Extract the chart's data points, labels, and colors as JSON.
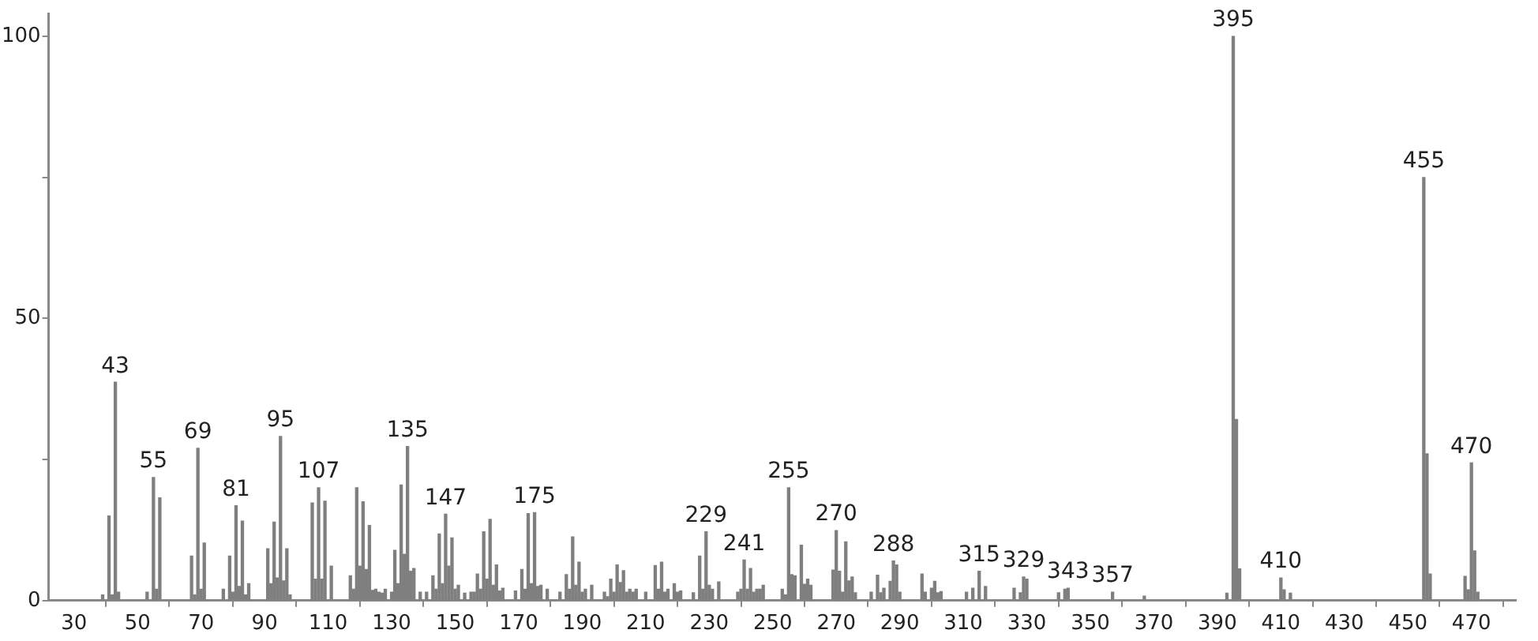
{
  "chart_data": {
    "type": "bar",
    "color": "#7f7f7f",
    "grid": false,
    "legend": false,
    "xlim": [
      22,
      484
    ],
    "xticks": [
      30,
      50,
      70,
      90,
      110,
      130,
      150,
      170,
      190,
      210,
      230,
      250,
      270,
      290,
      310,
      330,
      350,
      370,
      390,
      410,
      430,
      450,
      470
    ],
    "ylim": [
      0,
      104
    ],
    "yticks": [
      0,
      {
        "value": 25,
        "label": null
      },
      50,
      {
        "value": 75,
        "label": null
      },
      100
    ],
    "x": [
      39,
      41,
      42,
      43,
      44,
      53,
      55,
      56,
      57,
      67,
      68,
      69,
      70,
      71,
      77,
      79,
      80,
      81,
      82,
      83,
      84,
      85,
      91,
      92,
      93,
      94,
      95,
      96,
      97,
      98,
      105,
      106,
      107,
      108,
      109,
      111,
      117,
      118,
      119,
      120,
      121,
      122,
      123,
      124,
      125,
      126,
      127,
      128,
      130,
      131,
      132,
      133,
      134,
      135,
      136,
      137,
      139,
      141,
      143,
      144,
      145,
      146,
      147,
      148,
      149,
      150,
      151,
      153,
      155,
      156,
      157,
      158,
      159,
      160,
      161,
      162,
      163,
      164,
      165,
      169,
      171,
      172,
      173,
      174,
      175,
      176,
      177,
      179,
      183,
      185,
      186,
      187,
      188,
      189,
      190,
      191,
      193,
      197,
      198,
      199,
      200,
      201,
      202,
      203,
      204,
      205,
      206,
      207,
      210,
      213,
      214,
      215,
      216,
      217,
      219,
      220,
      221,
      225,
      227,
      228,
      229,
      230,
      231,
      233,
      239,
      240,
      241,
      242,
      243,
      244,
      245,
      246,
      247,
      253,
      254,
      255,
      256,
      257,
      259,
      260,
      261,
      262,
      269,
      270,
      271,
      272,
      273,
      274,
      275,
      276,
      281,
      283,
      284,
      285,
      287,
      288,
      289,
      290,
      297,
      298,
      300,
      301,
      302,
      303,
      311,
      313,
      315,
      317,
      326,
      328,
      329,
      330,
      340,
      342,
      343,
      357,
      367,
      393,
      395,
      396,
      397,
      410,
      411,
      413,
      455,
      456,
      457,
      468,
      469,
      470,
      471,
      472
    ],
    "values": [
      1.0,
      15.0,
      1.0,
      38.7,
      1.5,
      1.5,
      21.8,
      2.0,
      18.2,
      7.9,
      1.0,
      27.0,
      2.0,
      10.2,
      2.0,
      7.9,
      1.5,
      16.8,
      2.5,
      14.1,
      1.0,
      3.0,
      9.2,
      3.0,
      13.9,
      4.0,
      29.1,
      3.5,
      9.2,
      1.0,
      17.3,
      3.8,
      20.0,
      3.8,
      17.6,
      6.1,
      4.4,
      2.0,
      20.0,
      6.1,
      17.5,
      5.5,
      13.3,
      1.8,
      2.0,
      1.5,
      1.3,
      2.0,
      1.5,
      8.9,
      3.0,
      20.5,
      8.2,
      27.3,
      5.2,
      5.7,
      1.5,
      1.5,
      4.4,
      2.0,
      11.8,
      3.0,
      15.3,
      6.1,
      11.1,
      2.0,
      2.7,
      1.3,
      1.5,
      1.5,
      4.7,
      2.0,
      12.2,
      3.8,
      14.4,
      2.7,
      6.3,
      1.7,
      2.2,
      1.7,
      5.5,
      2.0,
      15.4,
      3.0,
      15.6,
      2.5,
      2.7,
      2.0,
      1.5,
      4.6,
      2.0,
      11.3,
      2.7,
      6.8,
      1.5,
      2.0,
      2.7,
      1.5,
      0.7,
      3.8,
      1.5,
      6.3,
      3.2,
      5.3,
      1.5,
      2.0,
      1.5,
      2.0,
      1.5,
      6.2,
      2.0,
      6.8,
      1.5,
      2.0,
      3.0,
      1.5,
      1.7,
      1.4,
      7.9,
      2.0,
      12.2,
      2.7,
      2.0,
      3.3,
      1.5,
      2.0,
      7.2,
      2.0,
      5.7,
      1.5,
      2.0,
      2.0,
      2.7,
      2.0,
      1.0,
      20.0,
      4.6,
      4.4,
      9.8,
      2.9,
      3.8,
      2.7,
      5.4,
      12.4,
      5.2,
      1.5,
      10.4,
      3.5,
      4.2,
      1.4,
      1.5,
      4.5,
      1.4,
      2.2,
      3.4,
      7.0,
      6.3,
      1.5,
      4.7,
      1.5,
      2.2,
      3.4,
      1.4,
      1.6,
      1.5,
      2.2,
      5.2,
      2.5,
      2.2,
      1.4,
      4.2,
      3.8,
      1.4,
      2.0,
      2.2,
      1.5,
      0.8,
      1.3,
      100,
      32.1,
      5.6,
      4.0,
      1.9,
      1.3,
      75,
      26.0,
      4.7,
      4.3,
      1.9,
      24.4,
      8.8,
      1.5
    ],
    "annotations": [
      {
        "text": "43",
        "x": 43,
        "y": 38.7
      },
      {
        "text": "55",
        "x": 55,
        "y": 21.8
      },
      {
        "text": "69",
        "x": 69,
        "y": 27.0
      },
      {
        "text": "81",
        "x": 81,
        "y": 16.8
      },
      {
        "text": "95",
        "x": 95,
        "y": 29.1
      },
      {
        "text": "107",
        "x": 107,
        "y": 20.0
      },
      {
        "text": "135",
        "x": 135,
        "y": 27.3
      },
      {
        "text": "147",
        "x": 147,
        "y": 15.3
      },
      {
        "text": "175",
        "x": 175,
        "y": 15.6
      },
      {
        "text": "229",
        "x": 229,
        "y": 12.2
      },
      {
        "text": "241",
        "x": 241,
        "y": 7.2
      },
      {
        "text": "255",
        "x": 255,
        "y": 20.0
      },
      {
        "text": "270",
        "x": 270,
        "y": 12.4
      },
      {
        "text": "288",
        "x": 288,
        "y": 7.0
      },
      {
        "text": "315",
        "x": 315,
        "y": 5.2
      },
      {
        "text": "329",
        "x": 329,
        "y": 4.2
      },
      {
        "text": "343",
        "x": 343,
        "y": 2.2
      },
      {
        "text": "357",
        "x": 357,
        "y": 1.5
      },
      {
        "text": "395",
        "x": 395,
        "y": 100
      },
      {
        "text": "410",
        "x": 410,
        "y": 4.0
      },
      {
        "text": "455",
        "x": 455,
        "y": 75
      },
      {
        "text": "470",
        "x": 470,
        "y": 24.4
      }
    ]
  }
}
